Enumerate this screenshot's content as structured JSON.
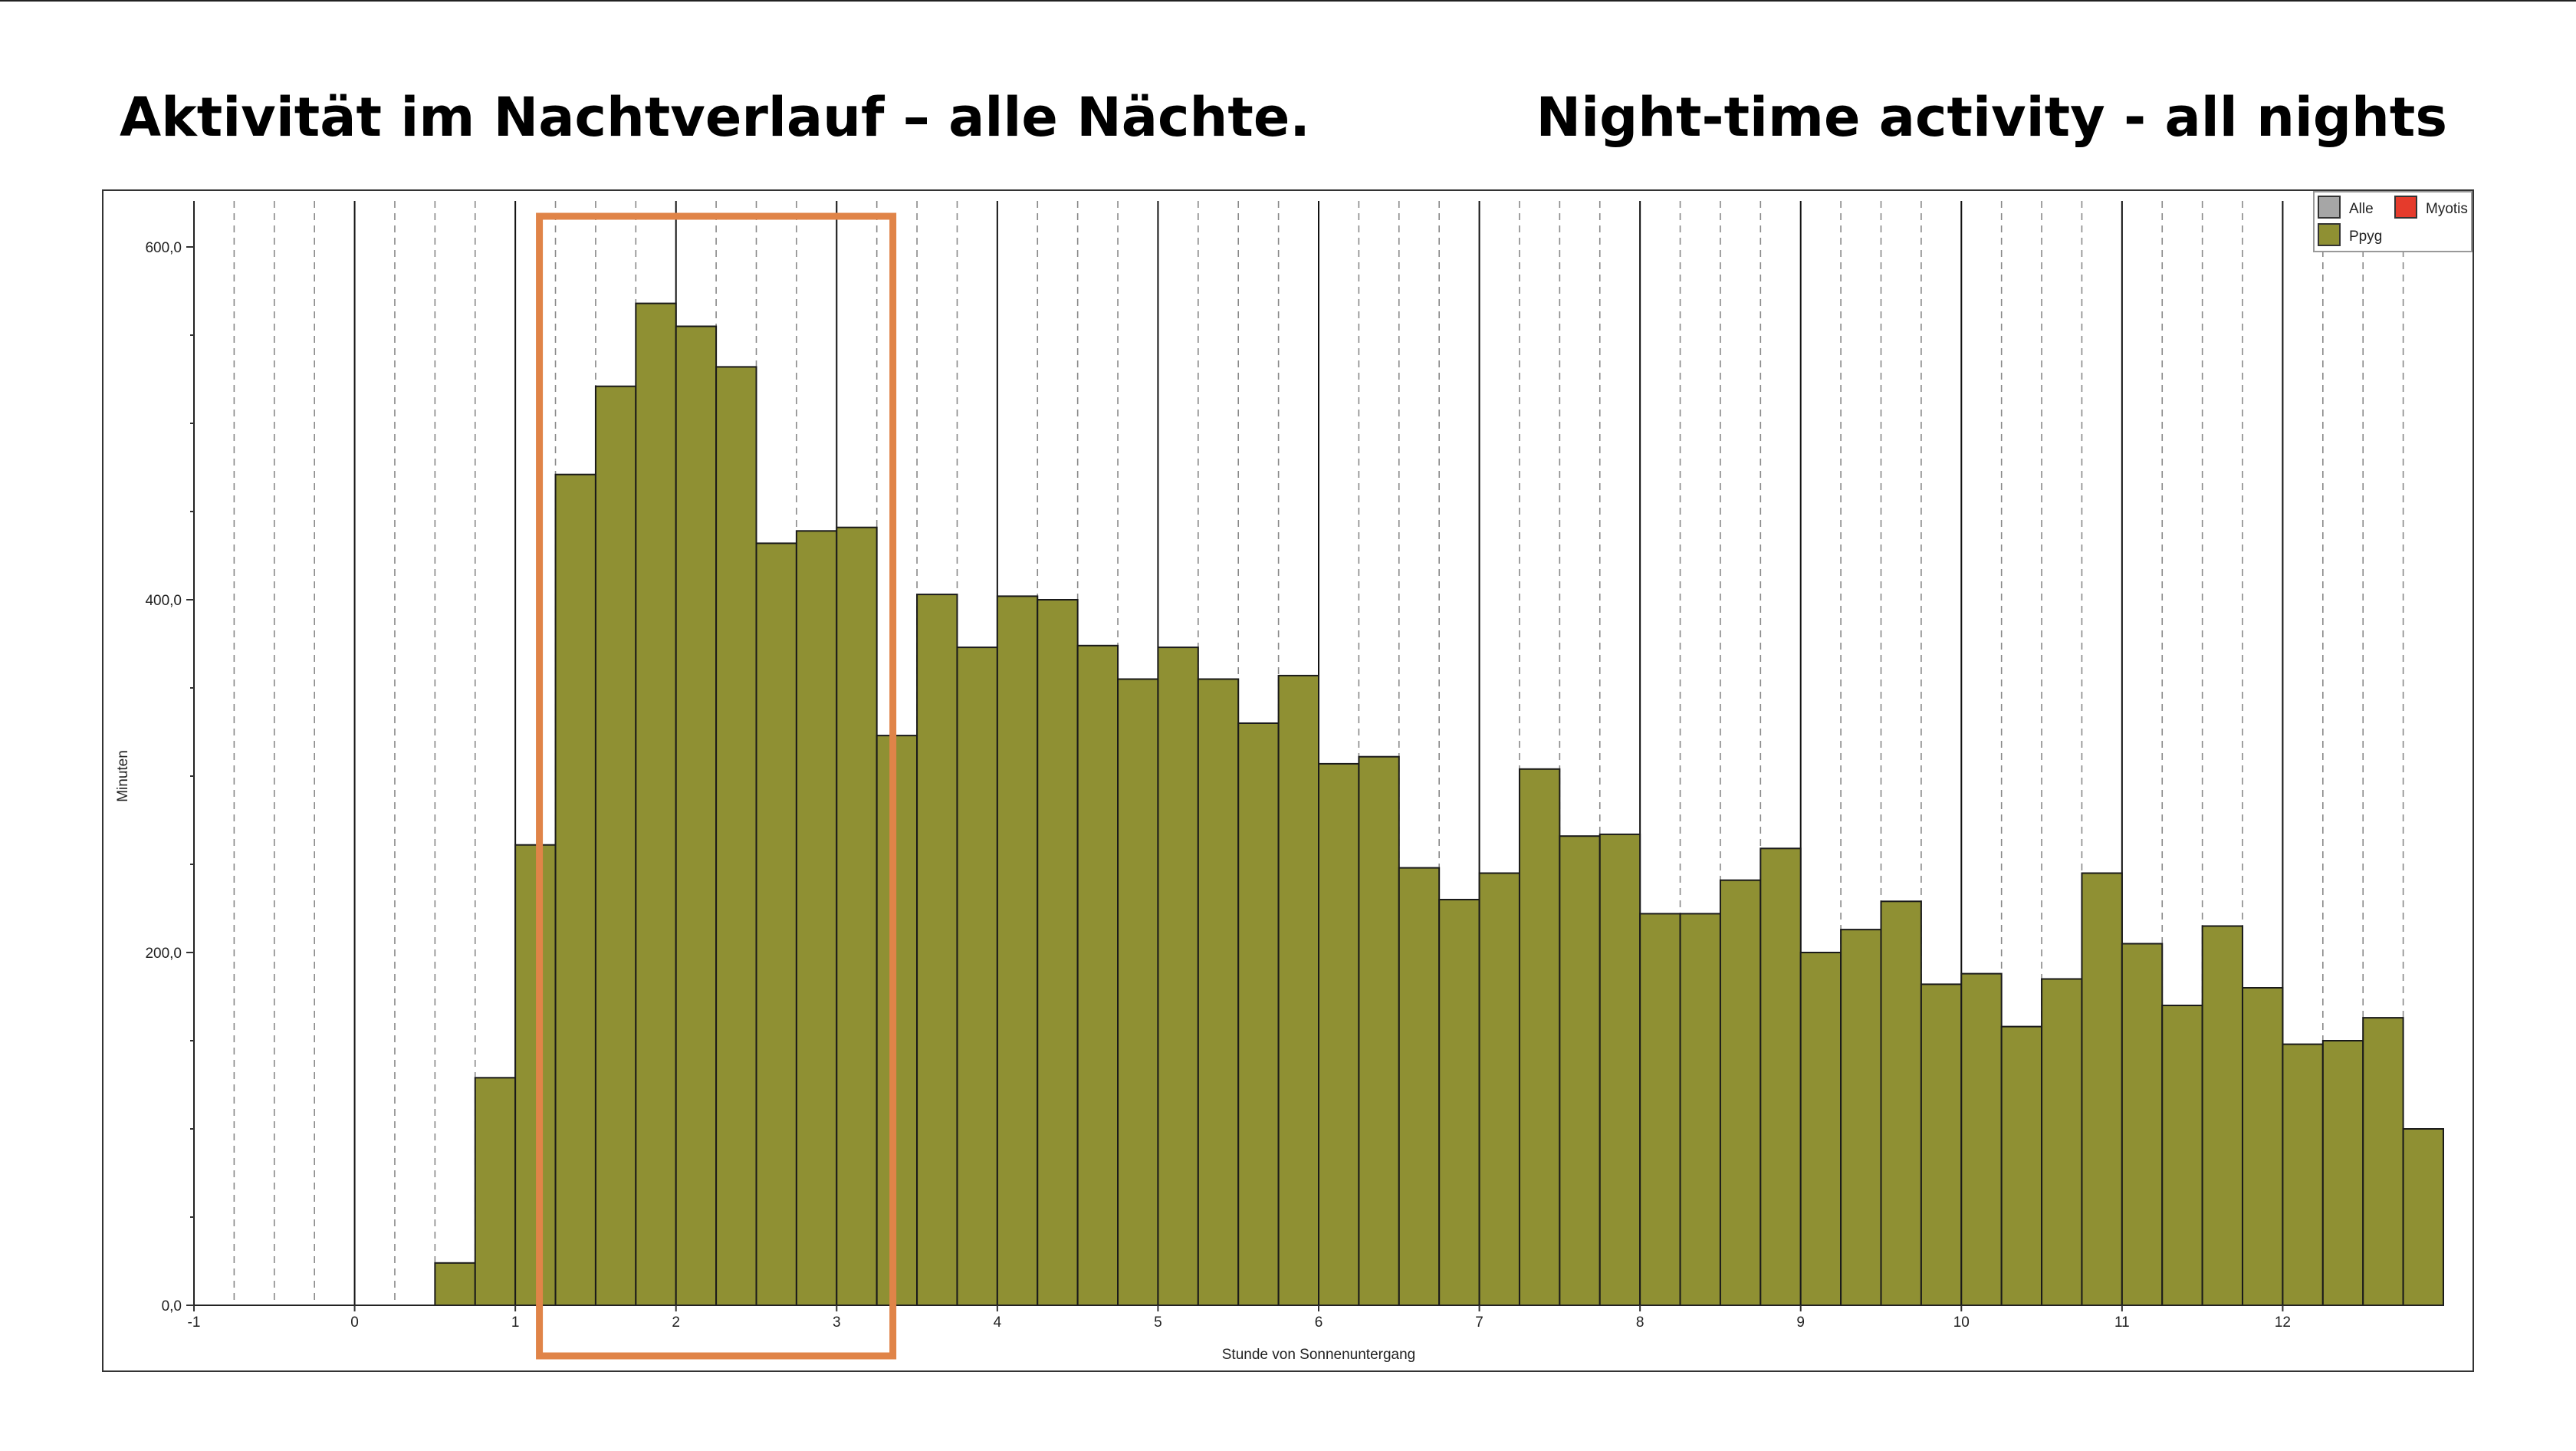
{
  "slide": {
    "title_left": "Aktivität im Nachtverlauf – alle Nächte.",
    "title_right": "Night-time activity - all nights"
  },
  "chart_data": {
    "type": "bar",
    "title": "",
    "xlabel": "Stunde von Sonnenuntergang",
    "ylabel": "Minuten",
    "xlim": [
      -1,
      13
    ],
    "ylim": [
      0,
      650
    ],
    "x_ticks": [
      -1,
      0,
      1,
      2,
      3,
      4,
      5,
      6,
      7,
      8,
      9,
      10,
      11,
      12
    ],
    "x_tick_labels": [
      "-1",
      "0",
      "1",
      "2",
      "3",
      "4",
      "5",
      "6",
      "7",
      "8",
      "9",
      "10",
      "11",
      "12"
    ],
    "y_ticks": [
      0,
      200,
      400,
      600
    ],
    "y_tick_labels": [
      "0,0",
      "200,0",
      "400,0",
      "600,0"
    ],
    "bin_width_hours": 0.25,
    "grid": "vertical lines: solid at full hours, dashed at quarter hours",
    "legend_position": "top-right",
    "legend": [
      {
        "name": "Alle",
        "color": "#a6a6a6"
      },
      {
        "name": "Myotis",
        "color": "#e53b2c"
      },
      {
        "name": "Ppyg",
        "color": "#8f9033"
      }
    ],
    "series": [
      {
        "name": "Ppyg",
        "color": "#8f9033",
        "x_start": [
          0.5,
          0.75,
          1.0,
          1.25,
          1.5,
          1.75,
          2.0,
          2.25,
          2.5,
          2.75,
          3.0,
          3.25,
          3.5,
          3.75,
          4.0,
          4.25,
          4.5,
          4.75,
          5.0,
          5.25,
          5.5,
          5.75,
          6.0,
          6.25,
          6.5,
          6.75,
          7.0,
          7.25,
          7.5,
          7.75,
          8.0,
          8.25,
          8.5,
          8.75,
          9.0,
          9.25,
          9.5,
          9.75,
          10.0,
          10.25,
          10.5,
          10.75,
          11.0,
          11.25,
          11.5,
          11.75,
          12.0,
          12.25,
          12.5,
          12.75
        ],
        "values": [
          24,
          129,
          261,
          471,
          521,
          568,
          555,
          532,
          432,
          439,
          441,
          323,
          403,
          373,
          402,
          400,
          374,
          355,
          373,
          355,
          330,
          357,
          307,
          311,
          248,
          230,
          245,
          304,
          266,
          267,
          222,
          222,
          241,
          259,
          200,
          213,
          229,
          182,
          188,
          158,
          185,
          245,
          205,
          170,
          215,
          180,
          148,
          150,
          163,
          100
        ]
      }
    ],
    "annotation": {
      "type": "highlight-rectangle",
      "color": "#e08448",
      "x_range": [
        1.15,
        3.35
      ]
    }
  }
}
